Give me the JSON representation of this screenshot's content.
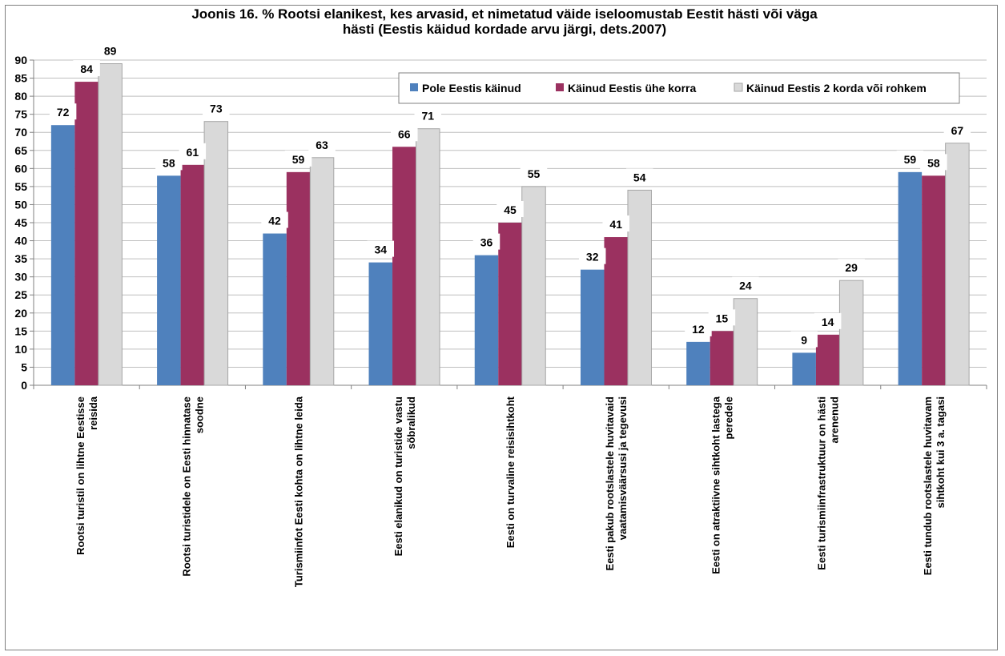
{
  "chart_data": {
    "type": "bar",
    "title": "Joonis 16. % Rootsi elanikest, kes arvasid, et nimetatud väide iseloomustab Eestit hästi või väga\nhästi (Eestis käidud kordade arvu järgi, dets.2007)",
    "xlabel": "",
    "ylabel": "",
    "ylim": [
      0,
      90
    ],
    "yticks": [
      0,
      5,
      10,
      15,
      20,
      25,
      30,
      35,
      40,
      45,
      50,
      55,
      60,
      65,
      70,
      75,
      80,
      85,
      90
    ],
    "grid": true,
    "legend_position": "top-right",
    "categories": [
      [
        "Rootsi turistil on lihtne Eestisse",
        "reisida"
      ],
      [
        "Rootsi turistidele on Eesti hinnatase",
        "soodne"
      ],
      [
        "Turismiinfot Eesti kohta on lihtne leida"
      ],
      [
        "Eesti elanikud on turistide  vastu",
        "sõbralikud"
      ],
      [
        "Eesti on turvaline reisisihtkoht"
      ],
      [
        "Eesti pakub rootslastele huvitavaid",
        "vaatamisväärsusi  ja tegevusi"
      ],
      [
        "Eesti on atraktiivne sihtkoht lastega",
        "peredele"
      ],
      [
        "Eesti turismiinfrastruktuur  on hästi",
        "arenenud"
      ],
      [
        "Eesti tundub rootslastele huvitavam",
        "sihtkoht kui 3 a. tagasi"
      ]
    ],
    "series": [
      {
        "name": "Pole Eestis käinud",
        "color": "#4f81bd",
        "values": [
          72,
          58,
          42,
          34,
          36,
          32,
          12,
          9,
          59
        ]
      },
      {
        "name": "Käinud Eestis ühe korra",
        "color": "#9b3160",
        "values": [
          84,
          61,
          59,
          66,
          45,
          41,
          15,
          14,
          58
        ]
      },
      {
        "name": "Käinud Eestis 2 korda või rohkem",
        "color": "#d9d9d9",
        "values": [
          89,
          73,
          63,
          71,
          55,
          54,
          24,
          29,
          67
        ]
      }
    ],
    "data_labels": [
      [
        "72",
        "58",
        "42",
        "34",
        "36",
        "32",
        "12",
        "9",
        "59"
      ],
      [
        "84",
        "61",
        "59",
        "66",
        "45",
        "41",
        "15",
        "14",
        "58"
      ],
      [
        "89",
        "73",
        "63",
        "71",
        "55",
        "54",
        "24",
        "29",
        "67"
      ]
    ]
  }
}
